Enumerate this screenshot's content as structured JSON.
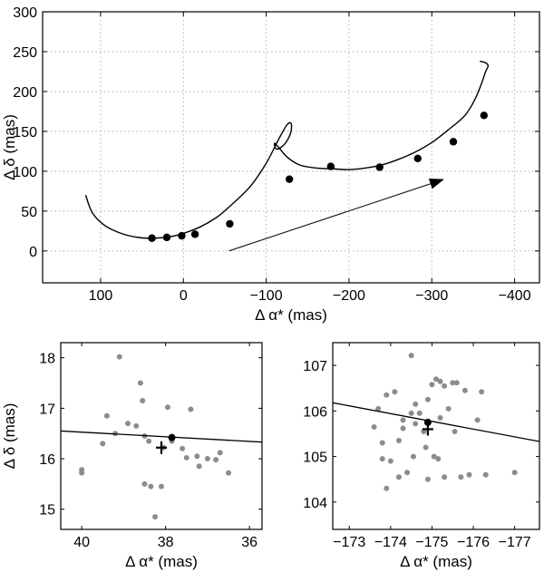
{
  "chart_data": [
    {
      "type": "line",
      "xlabel": "Δ α* (mas)",
      "ylabel": "Δ δ (mas)",
      "xlim": [
        170,
        -430
      ],
      "ylim": [
        -40,
        300
      ],
      "xticks": [
        100,
        0,
        -100,
        -200,
        -300,
        -400
      ],
      "yticks": [
        0,
        50,
        100,
        150,
        200,
        250,
        300
      ],
      "grid": true,
      "series": [
        {
          "role": "model-track",
          "x": [
            118,
            110,
            95,
            75,
            55,
            35,
            15,
            0,
            -20,
            -40,
            -55,
            -80,
            -100,
            -115,
            -125,
            -130,
            -130,
            -125,
            -118,
            -112,
            -110,
            -115,
            -125,
            -140,
            -160,
            -180,
            -200,
            -220,
            -240,
            -260,
            -280,
            -300,
            -320,
            -340,
            -352,
            -360,
            -365,
            -368,
            -365,
            -358
          ],
          "y": [
            70,
            48,
            32,
            22,
            17,
            16,
            18,
            22,
            30,
            42,
            55,
            80,
            110,
            140,
            158,
            160,
            150,
            138,
            130,
            128,
            135,
            130,
            118,
            108,
            104,
            103,
            102,
            104,
            108,
            115,
            124,
            136,
            152,
            170,
            190,
            210,
            225,
            232,
            236,
            238
          ]
        },
        {
          "role": "epochs",
          "x": [
            38,
            20,
            2,
            -14,
            -56,
            -128,
            -178,
            -237,
            -283,
            -326,
            -363
          ],
          "y": [
            16,
            17,
            19,
            21,
            34,
            90,
            106,
            105,
            116,
            137,
            170
          ]
        },
        {
          "role": "proper-motion-arrow",
          "x": [
            -55,
            -315
          ],
          "y": [
            0,
            90
          ]
        }
      ]
    },
    {
      "type": "scatter",
      "xlabel": "Δ α* (mas)",
      "ylabel": "Δ δ (mas)",
      "xlim": [
        40.5,
        35.7
      ],
      "ylim": [
        14.6,
        18.3
      ],
      "xticks": [
        40,
        38,
        36
      ],
      "yticks": [
        15,
        16,
        17,
        18
      ],
      "series": [
        {
          "role": "measurements",
          "x": [
            39.1,
            39.4,
            39.2,
            38.9,
            38.6,
            38.55,
            38.7,
            38.5,
            38.4,
            37.95,
            37.85,
            38.05,
            37.4,
            37.6,
            37.25,
            37.0,
            36.8,
            36.7,
            38.1,
            38.25,
            38.35,
            38.5,
            37.5,
            37.2,
            36.5,
            40.0,
            40.0,
            39.5
          ],
          "y": [
            18.02,
            16.85,
            16.5,
            16.7,
            17.5,
            17.15,
            16.65,
            16.45,
            16.35,
            17.02,
            16.35,
            16.22,
            16.98,
            16.2,
            16.05,
            16.0,
            15.98,
            16.12,
            15.45,
            14.85,
            15.45,
            15.5,
            16.02,
            15.85,
            15.72,
            15.72,
            15.78,
            16.3
          ]
        },
        {
          "role": "fit-line",
          "x": [
            40.5,
            35.7
          ],
          "y": [
            16.55,
            16.33
          ]
        },
        {
          "role": "model-position",
          "x": [
            37.85
          ],
          "y": [
            16.42
          ]
        },
        {
          "role": "mean-position",
          "x": [
            38.1
          ],
          "y": [
            16.22
          ]
        }
      ]
    },
    {
      "type": "scatter",
      "xlabel": "Δ α* (mas)",
      "ylabel": "",
      "xlim": [
        -172.6,
        -177.6
      ],
      "ylim": [
        103.4,
        107.5
      ],
      "xticks": [
        -173,
        -174,
        -175,
        -176,
        -177
      ],
      "yticks": [
        104,
        105,
        106,
        107
      ],
      "series": [
        {
          "role": "measurements",
          "x": [
            -174.5,
            -174.1,
            -173.9,
            -173.7,
            -173.6,
            -173.8,
            -174.3,
            -174.5,
            -174.6,
            -174.9,
            -175.0,
            -175.1,
            -175.2,
            -175.3,
            -175.5,
            -175.6,
            -175.8,
            -176.2,
            -175.4,
            -175.2,
            -174.7,
            -174.6,
            -174.8,
            -174.3,
            -174.2,
            -174.55,
            -174.85,
            -175.05,
            -175.15,
            -175.3,
            -175.7,
            -175.9,
            -176.3,
            -177.0,
            -174.9,
            -174.4,
            -174.2,
            -173.9,
            -173.8,
            -174.0,
            -175.55,
            -176.1
          ],
          "y": [
            107.22,
            106.42,
            106.35,
            106.05,
            105.65,
            105.3,
            105.8,
            105.95,
            106.15,
            106.25,
            106.58,
            106.7,
            106.65,
            106.55,
            106.62,
            106.62,
            106.45,
            106.42,
            106.05,
            105.85,
            105.95,
            105.72,
            105.55,
            105.62,
            105.35,
            105.0,
            105.2,
            105.0,
            104.95,
            104.55,
            104.55,
            104.6,
            104.6,
            104.65,
            104.5,
            104.65,
            104.55,
            104.3,
            104.95,
            104.9,
            105.55,
            105.8
          ]
        },
        {
          "role": "fit-line",
          "x": [
            -172.6,
            -177.6
          ],
          "y": [
            106.18,
            105.33
          ]
        },
        {
          "role": "model-position",
          "x": [
            -174.9
          ],
          "y": [
            105.75
          ]
        },
        {
          "role": "mean-position",
          "x": [
            -174.9
          ],
          "y": [
            105.6
          ]
        }
      ]
    }
  ]
}
